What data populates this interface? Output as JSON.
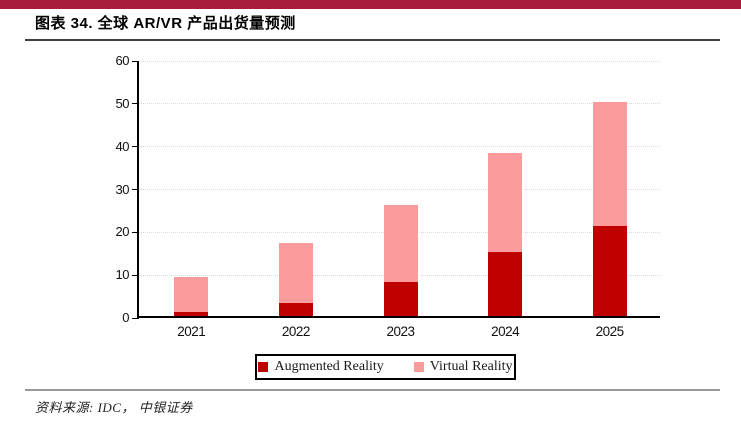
{
  "header": {
    "title": "图表 34. 全球 AR/VR 产品出货量预测"
  },
  "footer": {
    "source_label": "资料来源: IDC， 中银证券"
  },
  "theme": {
    "banner_color": "#A81C3C",
    "ar_color": "#C00000",
    "vr_color": "#FC9B9B",
    "grid_color": "#D9D9D9",
    "axis_color": "#000000"
  },
  "chart_data": {
    "type": "bar",
    "stacked": true,
    "title": "全球 AR/VR 产品出货量预测",
    "categories": [
      "2021",
      "2022",
      "2023",
      "2024",
      "2025"
    ],
    "series": [
      {
        "name": "Augmented Reality",
        "color": "#C00000",
        "values": [
          1,
          3,
          8,
          15,
          21
        ]
      },
      {
        "name": "Virtual Reality",
        "color": "#FC9B9B",
        "values": [
          8,
          14,
          18,
          23,
          29
        ]
      }
    ],
    "stack_totals": [
      9,
      17,
      26,
      38,
      50
    ],
    "xlabel": "",
    "ylabel": "",
    "ylim": [
      0,
      60
    ],
    "yticks": [
      0,
      10,
      20,
      30,
      40,
      50,
      60
    ],
    "grid": "horizontal-dotted",
    "legend_position": "bottom-boxed"
  }
}
